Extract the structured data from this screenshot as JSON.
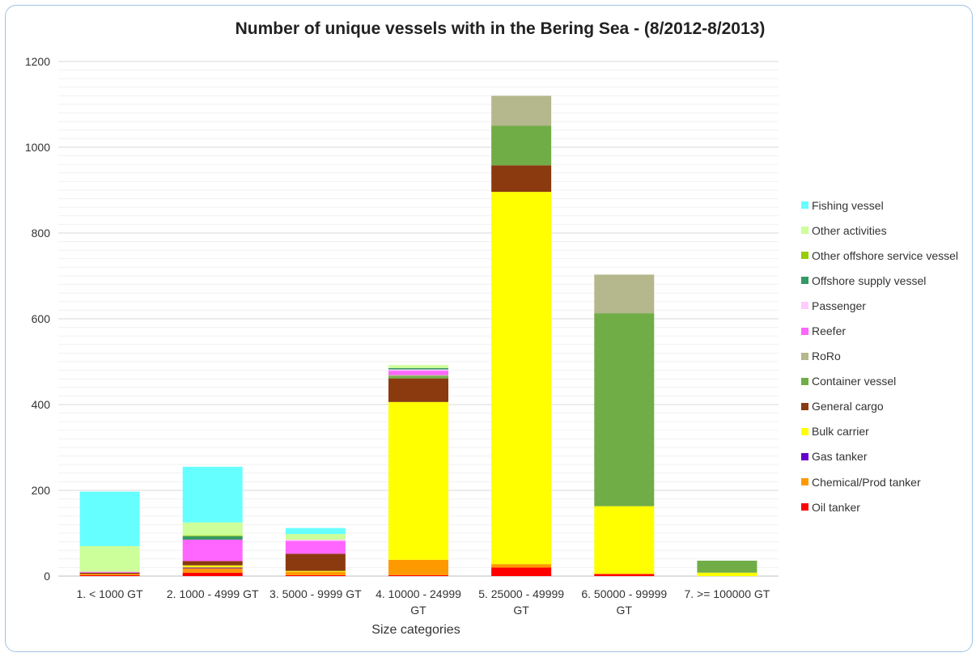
{
  "chart_data": {
    "type": "bar",
    "stacked": true,
    "title": "Number of unique vessels with in the Bering Sea - (8/2012-8/2013)",
    "xlabel": "Size categories",
    "ylabel": "",
    "ylim": [
      0,
      1200
    ],
    "yticks": [
      0,
      200,
      400,
      600,
      800,
      1000,
      1200
    ],
    "grid": true,
    "legend_position": "right",
    "categories": [
      "1. < 1000 GT",
      "2. 1000 - 4999 GT",
      "3. 5000 - 9999 GT",
      "4. 10000 - 24999 GT",
      "5. 25000 - 49999 GT",
      "6. 50000 - 99999 GT",
      "7. >= 100000 GT"
    ],
    "category_lines": [
      [
        "1. < 1000 GT"
      ],
      [
        "2. 1000 - 4999 GT"
      ],
      [
        "3. 5000 - 9999 GT"
      ],
      [
        "4. 10000 - 24999",
        "GT"
      ],
      [
        "5. 25000 - 49999",
        "GT"
      ],
      [
        "6. 50000 - 99999",
        "GT"
      ],
      [
        "7. >= 100000 GT"
      ]
    ],
    "series": [
      {
        "name": "Oil tanker",
        "color": "#ff0000",
        "values": [
          2,
          8,
          2,
          2,
          20,
          5,
          0
        ]
      },
      {
        "name": "Chemical/Prod tanker",
        "color": "#ff9900",
        "values": [
          3,
          10,
          8,
          36,
          8,
          0,
          0
        ]
      },
      {
        "name": "Gas tanker",
        "color": "#6600cc",
        "values": [
          0,
          2,
          0,
          0,
          0,
          0,
          0
        ]
      },
      {
        "name": "Bulk carrier",
        "color": "#ffff00",
        "values": [
          0,
          5,
          2,
          368,
          868,
          158,
          8
        ]
      },
      {
        "name": "General cargo",
        "color": "#8b3a0f",
        "values": [
          3,
          10,
          40,
          55,
          62,
          0,
          0
        ]
      },
      {
        "name": "Container vessel",
        "color": "#70ad47",
        "values": [
          0,
          0,
          0,
          5,
          92,
          450,
          28
        ]
      },
      {
        "name": "RoRo",
        "color": "#b5b78c",
        "values": [
          0,
          0,
          0,
          3,
          70,
          90,
          0
        ]
      },
      {
        "name": "Reefer",
        "color": "#ff66ff",
        "values": [
          2,
          50,
          30,
          10,
          0,
          0,
          0
        ]
      },
      {
        "name": "Passenger",
        "color": "#ffccff",
        "values": [
          0,
          0,
          3,
          3,
          0,
          0,
          0
        ]
      },
      {
        "name": "Offshore supply vessel",
        "color": "#339966",
        "values": [
          0,
          8,
          0,
          3,
          0,
          0,
          0
        ]
      },
      {
        "name": "Other offshore service vessel",
        "color": "#99cc00",
        "values": [
          0,
          2,
          0,
          0,
          0,
          0,
          0
        ]
      },
      {
        "name": "Other activities",
        "color": "#ccff99",
        "values": [
          60,
          30,
          13,
          7,
          0,
          0,
          0
        ]
      },
      {
        "name": "Fishing vessel",
        "color": "#66ffff",
        "values": [
          127,
          130,
          14,
          0,
          0,
          0,
          0
        ]
      }
    ]
  }
}
